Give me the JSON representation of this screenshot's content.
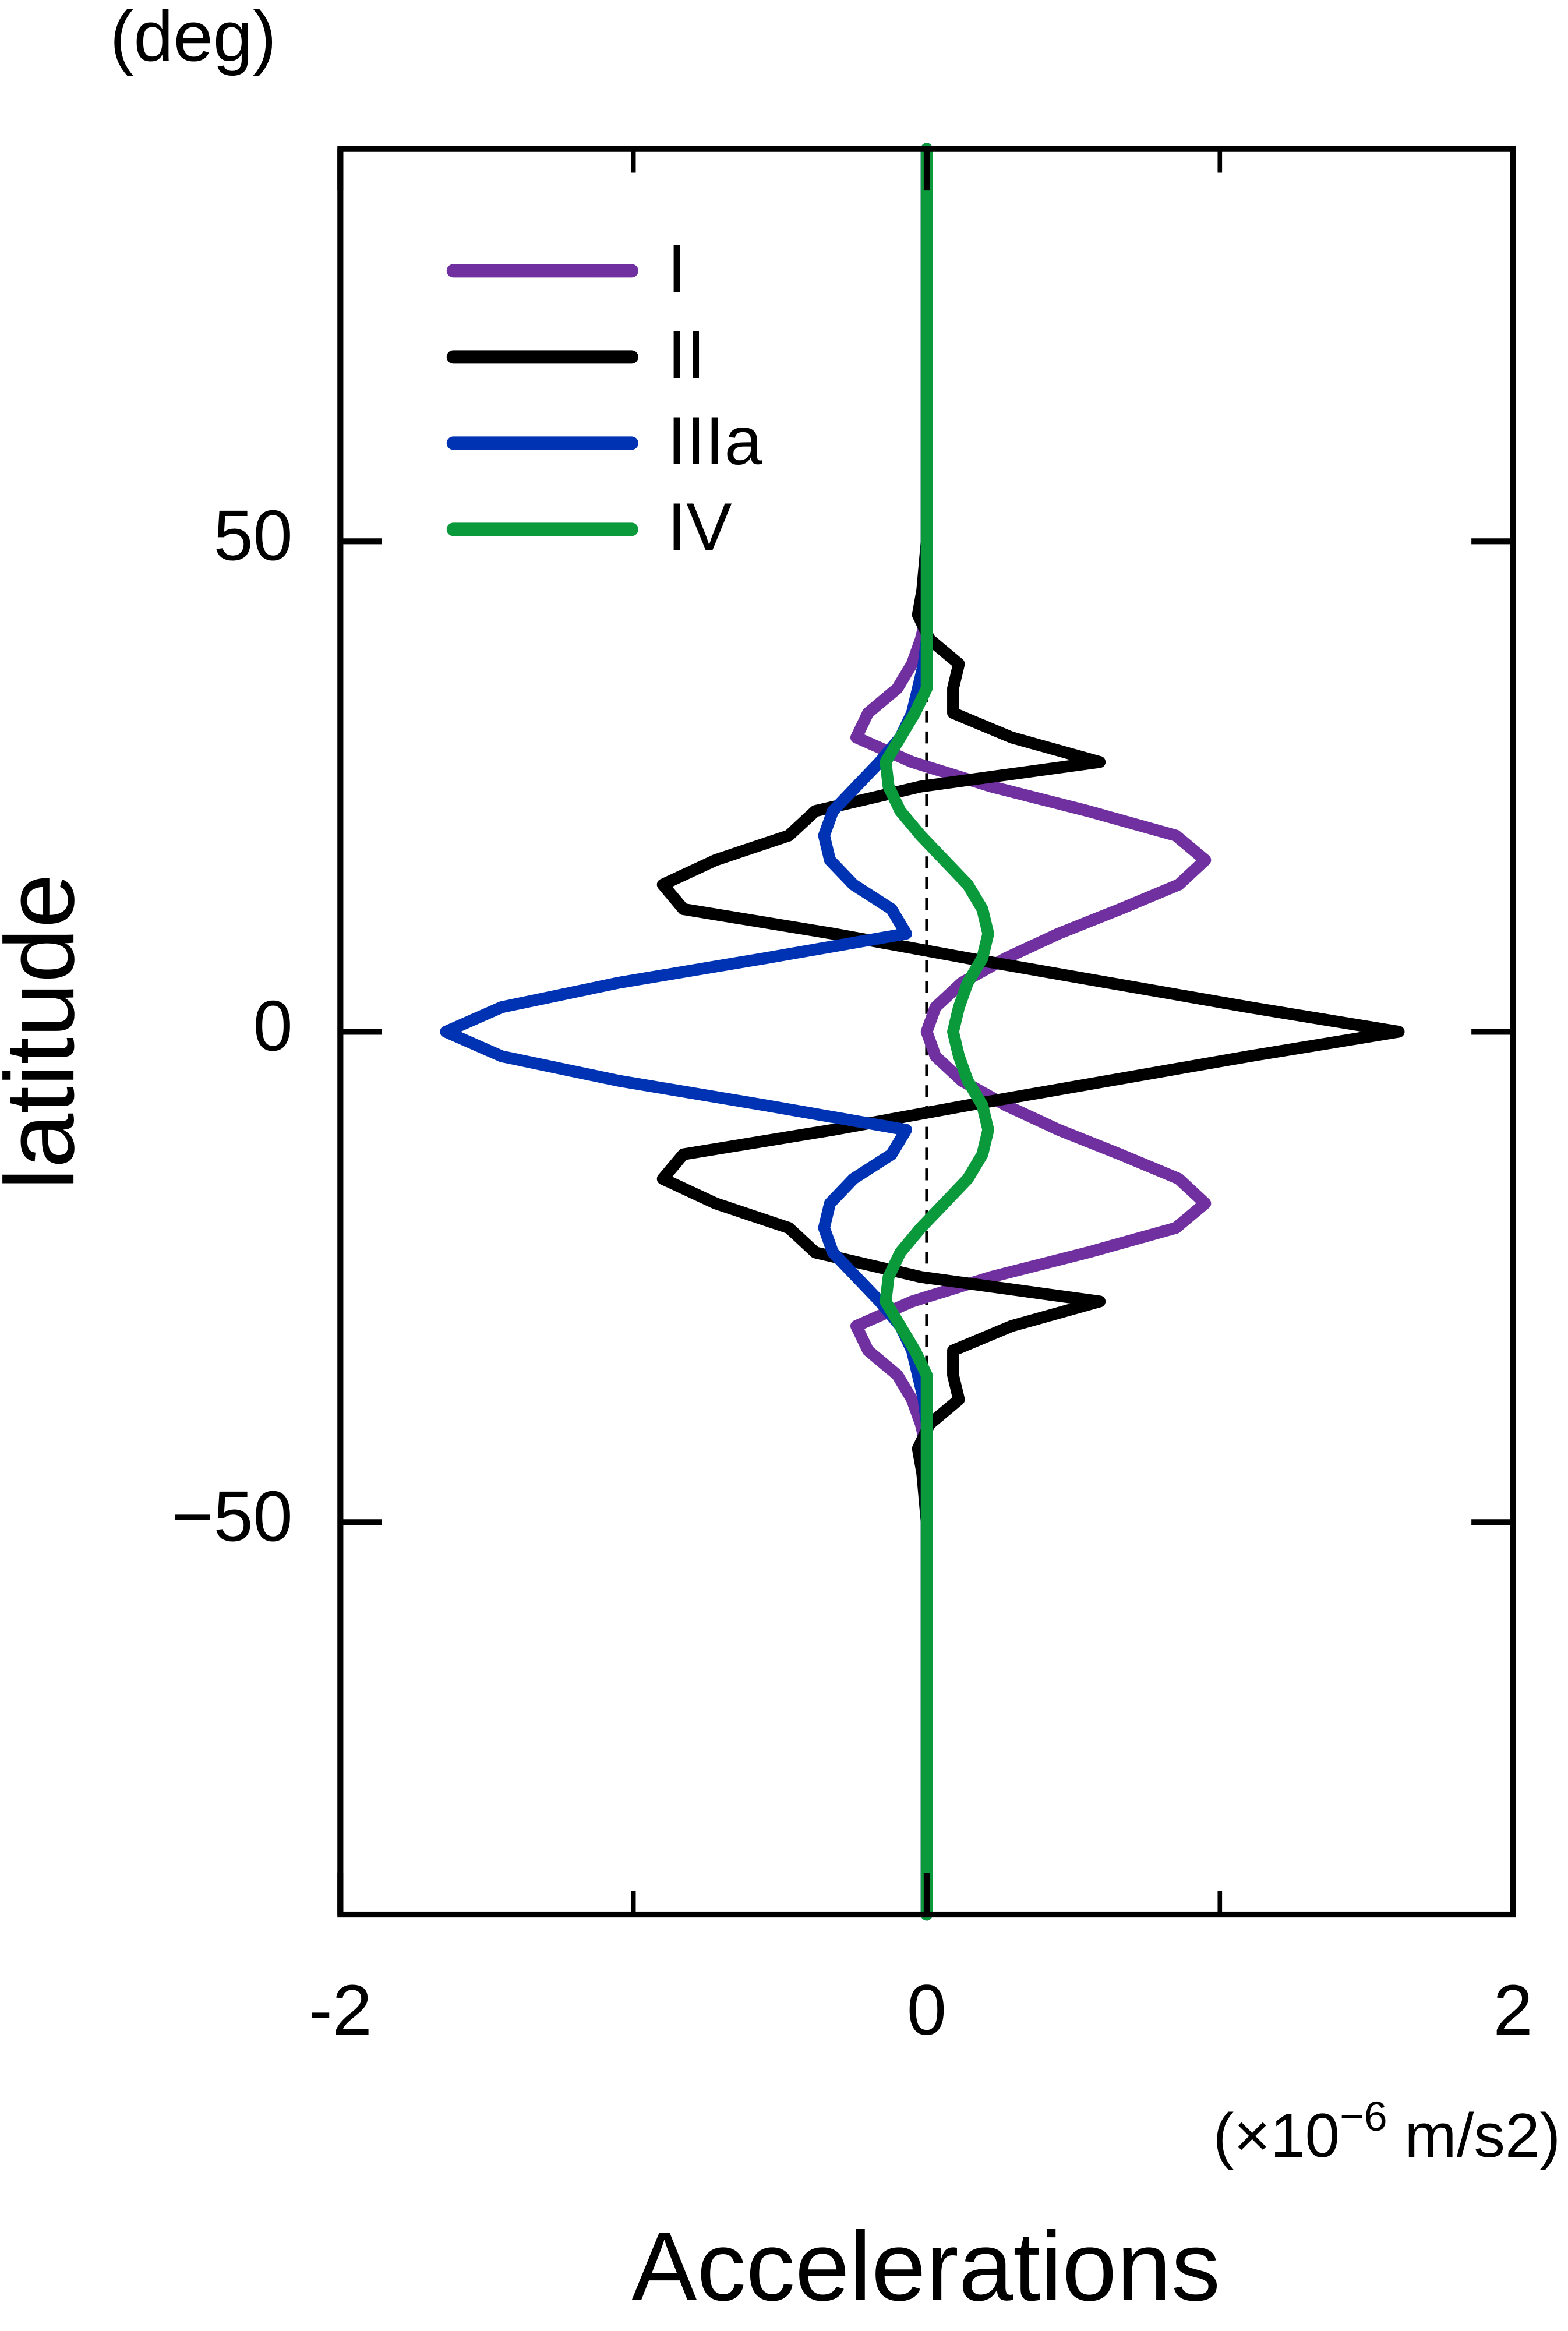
{
  "chart_data": {
    "type": "line",
    "orientation": "vertical",
    "x_label": "Accelerations",
    "y_label": "latitude",
    "y_unit": "(deg)",
    "x_unit": {
      "prefix": "(×10",
      "exponent": "−6",
      "suffix": " m/s2)"
    },
    "xlim": [
      -2,
      2
    ],
    "xticks": [
      -2,
      0,
      2
    ],
    "xminor_ticks": [
      -1,
      1
    ],
    "ylim": [
      -90,
      90
    ],
    "yticks": [
      {
        "value": -50,
        "label": "−50"
      },
      0,
      50
    ],
    "legend": "upper left",
    "zero_line": true,
    "y": [
      -90,
      -60,
      -50,
      -45,
      -42.5,
      -40,
      -37.5,
      -35,
      -32.5,
      -30,
      -27.5,
      -25,
      -22.5,
      -20,
      -17.5,
      -15,
      -12.5,
      -10,
      -7.5,
      -5,
      -2.5,
      0,
      2.5,
      5,
      7.5,
      10,
      12.5,
      15,
      17.5,
      20,
      22.5,
      25,
      27.5,
      30,
      32.5,
      35,
      37.5,
      40,
      42.5,
      45,
      50,
      60,
      90
    ],
    "series": [
      {
        "name": "I",
        "color": "#7030a0",
        "values": [
          0,
          0,
          0,
          0,
          0,
          -0.02,
          -0.05,
          -0.1,
          -0.2,
          -0.24,
          -0.05,
          0.22,
          0.55,
          0.85,
          0.95,
          0.86,
          0.66,
          0.45,
          0.27,
          0.12,
          0.03,
          0,
          0.03,
          0.12,
          0.27,
          0.45,
          0.66,
          0.86,
          0.95,
          0.85,
          0.55,
          0.22,
          -0.05,
          -0.24,
          -0.2,
          -0.1,
          -0.05,
          -0.02,
          0,
          0,
          0,
          0,
          0
        ]
      },
      {
        "name": "II",
        "color": "#000000",
        "values": [
          0,
          0,
          0,
          -0.015,
          -0.03,
          0.01,
          0.11,
          0.09,
          0.09,
          0.29,
          0.59,
          -0.02,
          -0.38,
          -0.47,
          -0.72,
          -0.9,
          -0.83,
          -0.32,
          0.14,
          0.62,
          1.1,
          1.61,
          1.1,
          0.62,
          0.14,
          -0.32,
          -0.83,
          -0.9,
          -0.72,
          -0.47,
          -0.38,
          -0.02,
          0.59,
          0.29,
          0.09,
          0.09,
          0.11,
          0.01,
          -0.03,
          -0.015,
          0,
          0,
          0
        ]
      },
      {
        "name": "IIIa",
        "color": "#0033b4",
        "values": [
          0,
          0,
          0,
          0,
          0,
          0,
          -0.01,
          -0.03,
          -0.05,
          -0.09,
          -0.16,
          -0.24,
          -0.32,
          -0.35,
          -0.33,
          -0.25,
          -0.12,
          -0.07,
          -0.55,
          -1.05,
          -1.45,
          -1.64,
          -1.45,
          -1.05,
          -0.55,
          -0.07,
          -0.12,
          -0.25,
          -0.33,
          -0.35,
          -0.32,
          -0.24,
          -0.16,
          -0.09,
          -0.05,
          -0.03,
          -0.01,
          0,
          0,
          0,
          0,
          0,
          0
        ]
      },
      {
        "name": "IV",
        "color": "#0a9a3c",
        "values": [
          0,
          0,
          0,
          0,
          0,
          0,
          0,
          0,
          -0.04,
          -0.09,
          -0.14,
          -0.13,
          -0.09,
          -0.02,
          0.06,
          0.14,
          0.19,
          0.21,
          0.19,
          0.14,
          0.11,
          0.09,
          0.11,
          0.14,
          0.19,
          0.21,
          0.19,
          0.14,
          0.06,
          -0.02,
          -0.09,
          -0.13,
          -0.14,
          -0.09,
          -0.04,
          0,
          0,
          0,
          0,
          0,
          0,
          0,
          0
        ]
      }
    ]
  }
}
